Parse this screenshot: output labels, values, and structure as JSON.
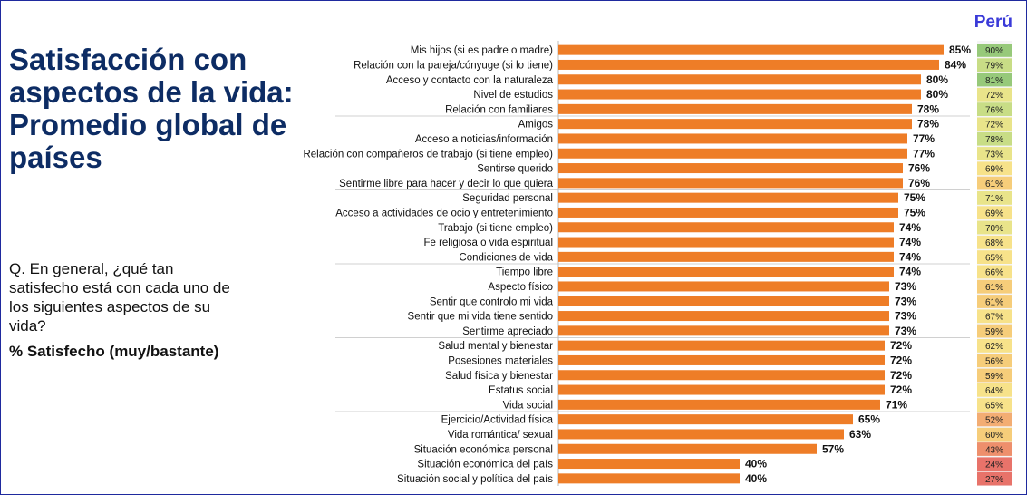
{
  "title": "Satisfacción con aspectos de la vida: Promedio global de países",
  "question": "Q. En general, ¿qué tan satisfecho está con cada uno de los siguientes aspectos de su vida?",
  "metric_label": "% Satisfecho (muy/bastante)",
  "country_label": "Perú",
  "colors": {
    "bar": "#ee7d27",
    "title": "#0d2c64",
    "country": "#3a3ad8",
    "frame": "#1f2a9e"
  },
  "chart_data": {
    "type": "bar",
    "orientation": "horizontal",
    "categories": [
      "Mis hijos (si es padre o madre)",
      "Relación con la pareja/cónyuge (si lo tiene)",
      "Acceso y contacto con la naturaleza",
      "Nivel de estudios",
      "Relación con familiares",
      "Amigos",
      "Acceso a noticias/información",
      "Relación con compañeros de trabajo (si tiene empleo)",
      "Sentirse querido",
      "Sentirme libre para hacer y decir lo que quiera",
      "Seguridad personal",
      "Acceso a actividades de ocio y entretenimiento",
      "Trabajo (si tiene empleo)",
      "Fe religiosa o vida espiritual",
      "Condiciones de vida",
      "Tiempo libre",
      "Aspecto físico",
      "Sentir que controlo mi vida",
      "Sentir que mi vida tiene sentido",
      "Sentirme apreciado",
      "Salud mental y bienestar",
      "Posesiones materiales",
      "Salud física y bienestar",
      "Estatus social",
      "Vida social",
      "Ejercicio/Actividad física",
      "Vida romántica/ sexual",
      "Situación económica personal",
      "Situación económica del país",
      "Situación social y política del país"
    ],
    "series": [
      {
        "values": [
          85,
          84,
          80,
          80,
          78,
          78,
          77,
          77,
          76,
          76,
          75,
          75,
          74,
          74,
          74,
          74,
          73,
          73,
          73,
          73,
          72,
          72,
          72,
          72,
          71,
          65,
          63,
          57,
          40,
          40
        ]
      },
      {
        "name": "Perú",
        "values": [
          90,
          79,
          81,
          72,
          76,
          72,
          78,
          73,
          69,
          61,
          71,
          69,
          70,
          68,
          65,
          66,
          61,
          61,
          67,
          59,
          62,
          56,
          59,
          64,
          65,
          52,
          60,
          43,
          24,
          27
        ]
      }
    ],
    "group_separators_after_index": [
      4,
      9,
      14,
      19,
      24
    ],
    "xlim": [
      0,
      100
    ]
  }
}
